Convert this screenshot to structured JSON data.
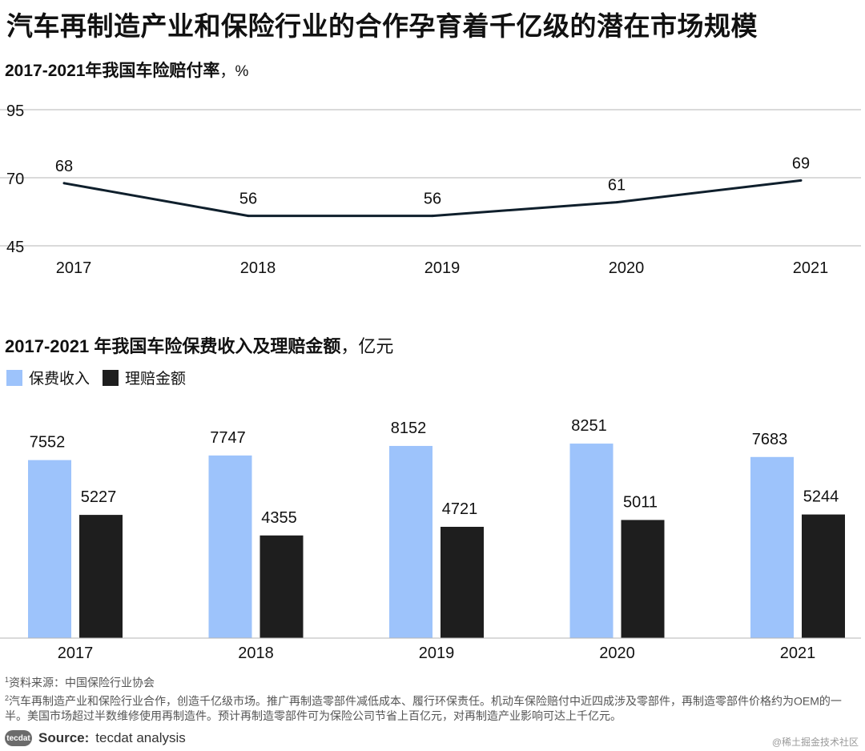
{
  "title": "汽车再制造产业和保险行业的合作孕育着千亿级的潜在市场规模",
  "chart_data": [
    {
      "type": "line",
      "title_bold": "2017-2021年我国车险赔付率",
      "title_unit": "，%",
      "x": [
        "2017",
        "2018",
        "2019",
        "2020",
        "2021"
      ],
      "values": [
        68,
        56,
        56,
        61,
        69
      ],
      "yticks": [
        95,
        70,
        45
      ],
      "ylim": [
        45,
        95
      ],
      "grid": true,
      "line_color": "#0f1f2c"
    },
    {
      "type": "bar",
      "title_bold": "2017-2021 年我国车险保费收入及理赔金额",
      "title_unit": "，亿元",
      "categories": [
        "2017",
        "2018",
        "2019",
        "2020",
        "2021"
      ],
      "series": [
        {
          "name": "保费收入",
          "color": "#9dc3fb",
          "values": [
            7552,
            7747,
            8152,
            8251,
            7683
          ]
        },
        {
          "name": "理赔金额",
          "color": "#1e1e1e",
          "values": [
            5227,
            4355,
            4721,
            5011,
            5244
          ]
        }
      ],
      "ylim": [
        0,
        9000
      ]
    }
  ],
  "footnotes": {
    "note1_mark": "1",
    "note1": "资料来源：中国保险行业协会",
    "note2_mark": "2",
    "note2": "汽车再制造产业和保险行业合作，创造千亿级市场。推广再制造零部件减低成本、履行环保责任。机动车保险赔付中近四成涉及零部件，再制造零部件价格约为OEM的一半。美国市场超过半数维修使用再制造件。预计再制造零部件可为保险公司节省上百亿元，对再制造产业影响可达上千亿元。"
  },
  "source": {
    "logo_text": "tecdat",
    "label": "Source:",
    "text": "tecdat analysis"
  },
  "watermark": "@稀土掘金技术社区"
}
